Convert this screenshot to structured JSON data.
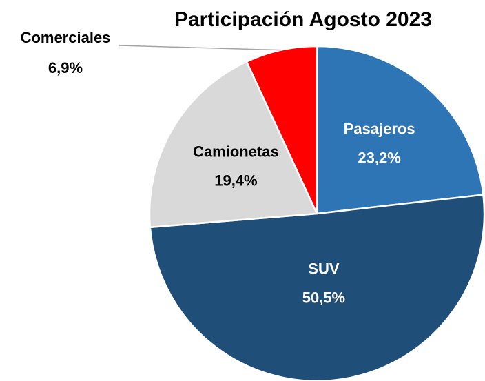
{
  "chart_data": {
    "type": "pie",
    "title": "Participación Agosto 2023",
    "categories": [
      "Pasajeros",
      "SUV",
      "Camionetas",
      "Comerciales"
    ],
    "values": [
      23.2,
      50.5,
      19.4,
      6.9
    ],
    "value_labels": [
      "23,2%",
      "50,5%",
      "19,4%",
      "6,9%"
    ],
    "colors": [
      "#2e75b6",
      "#1f4e79",
      "#d9d9d9",
      "#ff0000"
    ]
  }
}
